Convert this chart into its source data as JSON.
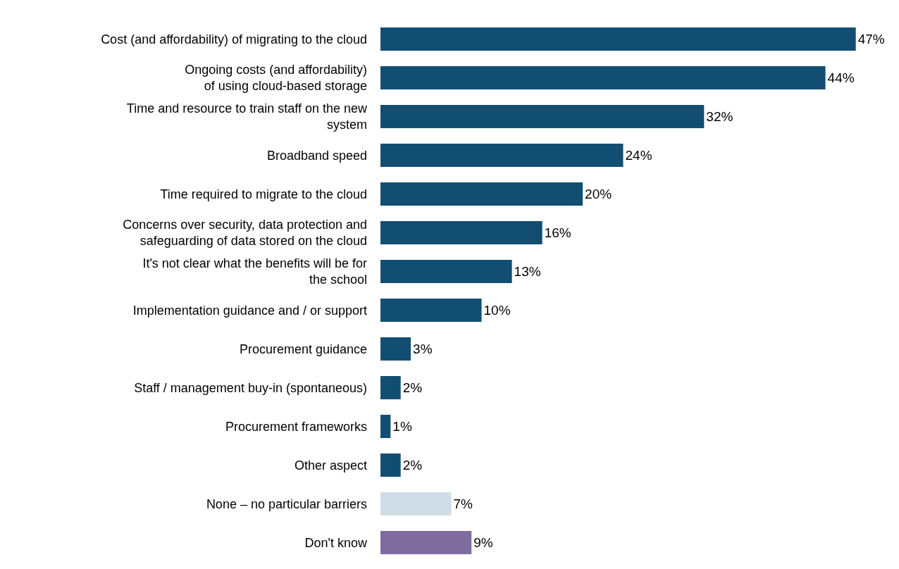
{
  "chart_data": {
    "type": "bar",
    "orientation": "horizontal",
    "categories": [
      "Cost (and affordability) of migrating to the cloud",
      "Ongoing costs (and affordability)\nof using cloud-based storage",
      "Time and resource to train staff on the new\nsystem",
      "Broadband speed",
      "Time required to migrate to the cloud",
      "Concerns over security, data protection and\nsafeguarding of data stored on the cloud",
      "It's not clear what the benefits will be for\nthe school",
      "Implementation guidance and / or support",
      "Procurement guidance",
      "Staff / management buy-in (spontaneous)",
      "Procurement frameworks",
      "Other aspect",
      "None – no particular barriers",
      "Don't know"
    ],
    "values": [
      47,
      44,
      32,
      24,
      20,
      16,
      13,
      10,
      3,
      2,
      1,
      2,
      7,
      9
    ],
    "value_labels": [
      "47%",
      "44%",
      "32%",
      "24%",
      "20%",
      "16%",
      "13%",
      "10%",
      "3%",
      "2%",
      "1%",
      "2%",
      "7%",
      "9%"
    ],
    "colors": [
      "#124e72",
      "#124e72",
      "#124e72",
      "#124e72",
      "#124e72",
      "#124e72",
      "#124e72",
      "#124e72",
      "#124e72",
      "#124e72",
      "#124e72",
      "#124e72",
      "#d0dde6",
      "#7f6c9e"
    ],
    "data_labels": false
  }
}
